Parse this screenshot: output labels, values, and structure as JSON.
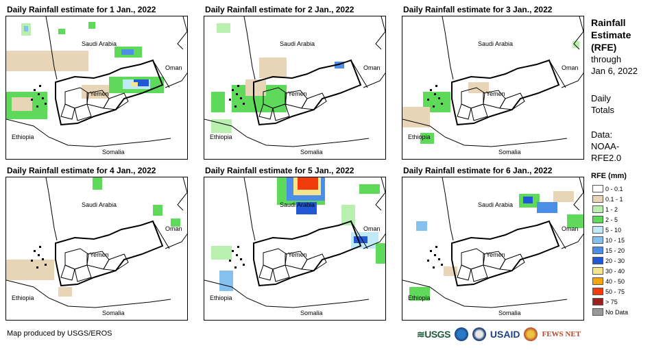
{
  "panels": [
    {
      "title": "Daily Rainfall estimate for 1 Jan., 2022"
    },
    {
      "title": "Daily Rainfall estimate for 2 Jan., 2022"
    },
    {
      "title": "Daily Rainfall estimate for 3 Jan., 2022"
    },
    {
      "title": "Daily Rainfall estimate for 4 Jan., 2022"
    },
    {
      "title": "Daily Rainfall estimate for 5 Jan., 2022"
    },
    {
      "title": "Daily Rainfall estimate for 6 Jan., 2022"
    }
  ],
  "map_labels": {
    "saudi": "Saudi Arabia",
    "oman": "Oman",
    "yemen": "Yemen",
    "ethiopia": "Ethiopia",
    "somalia": "Somalia"
  },
  "sidebar": {
    "title_line1": "Rainfall",
    "title_line2": "Estimate",
    "title_line3": "(RFE)",
    "through": "through",
    "date": "Jan 6, 2022",
    "daily": "Daily",
    "totals": "Totals",
    "data_label": "Data:",
    "data_source_1": "NOAA-",
    "data_source_2": "RFE2.0"
  },
  "legend": {
    "title": "RFE (mm)",
    "items": [
      {
        "label": "0 - 0.1",
        "color": "#ffffff"
      },
      {
        "label": "0.1 - 1",
        "color": "#e8d5b7"
      },
      {
        "label": "1 - 2",
        "color": "#b9f0b0"
      },
      {
        "label": "2 - 5",
        "color": "#5ed95a"
      },
      {
        "label": "5 - 10",
        "color": "#bfe9f7"
      },
      {
        "label": "10 - 15",
        "color": "#84c1ee"
      },
      {
        "label": "15 - 20",
        "color": "#4c8de6"
      },
      {
        "label": "20 - 30",
        "color": "#2058d6"
      },
      {
        "label": "30 - 40",
        "color": "#f5e58c"
      },
      {
        "label": "40 - 50",
        "color": "#f7a70a"
      },
      {
        "label": "50 - 75",
        "color": "#f03c0c"
      },
      {
        "label": "> 75",
        "color": "#9e1f1f"
      },
      {
        "label": "No Data",
        "color": "#999999"
      }
    ]
  },
  "footer": {
    "credit": "Map produced by USGS/EROS",
    "usgs": "USGS",
    "usaid": "USAID",
    "fewsnet": "FEWS NET"
  }
}
